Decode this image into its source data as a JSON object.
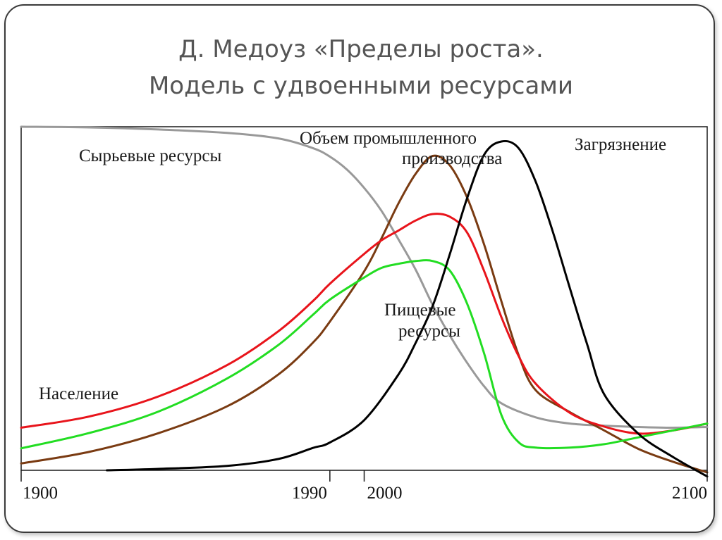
{
  "slide": {
    "title_line1": "Д. Медоуз «Пределы роста».",
    "title_line2": "Модель с удвоенными ресурсами"
  },
  "chart_data": {
    "type": "line",
    "xlabel": "",
    "ylabel": "",
    "xlim": [
      1900,
      2100
    ],
    "ylim": [
      0,
      100
    ],
    "x_ticks": [
      {
        "value": 1900,
        "label": "1900"
      },
      {
        "value": 1990,
        "label": "1990"
      },
      {
        "value": 2000,
        "label": "2000"
      },
      {
        "value": 2100,
        "label": "2100"
      }
    ],
    "series": [
      {
        "name": "Сырьевые ресурсы",
        "label_lines": [
          "Сырьевые ресурсы"
        ],
        "color": "#999999",
        "points": [
          [
            1900,
            100
          ],
          [
            1920,
            99.8
          ],
          [
            1940,
            99.2
          ],
          [
            1960,
            98.2
          ],
          [
            1975,
            96.6
          ],
          [
            1985,
            93.8
          ],
          [
            1990,
            91.3
          ],
          [
            1995,
            87.5
          ],
          [
            2000,
            82.2
          ],
          [
            2005,
            75.6
          ],
          [
            2010,
            67.2
          ],
          [
            2015,
            58.4
          ],
          [
            2020,
            48.1
          ],
          [
            2025,
            39.2
          ],
          [
            2030,
            31.3
          ],
          [
            2035,
            24.4
          ],
          [
            2040,
            19.5
          ],
          [
            2050,
            15.4
          ],
          [
            2060,
            13.6
          ],
          [
            2070,
            13.0
          ],
          [
            2080,
            12.6
          ],
          [
            2090,
            12.4
          ],
          [
            2100,
            12.6
          ]
        ]
      },
      {
        "name": "Объем промышленного производства",
        "label_lines": [
          "Объем промышленного",
          "производства"
        ],
        "color": "#7a3b12",
        "points": [
          [
            1900,
            2.0
          ],
          [
            1920,
            5.4
          ],
          [
            1940,
            10.8
          ],
          [
            1960,
            18.6
          ],
          [
            1975,
            27.9
          ],
          [
            1985,
            37.1
          ],
          [
            1990,
            43.3
          ],
          [
            2000,
            57.9
          ],
          [
            2005,
            67.4
          ],
          [
            2010,
            77.7
          ],
          [
            2015,
            86.3
          ],
          [
            2020,
            91.5
          ],
          [
            2025,
            88.7
          ],
          [
            2030,
            79.4
          ],
          [
            2035,
            65.6
          ],
          [
            2040,
            49.2
          ],
          [
            2045,
            33.6
          ],
          [
            2050,
            23.3
          ],
          [
            2060,
            16.9
          ],
          [
            2070,
            11.6
          ],
          [
            2080,
            6.2
          ],
          [
            2090,
            2.5
          ],
          [
            2100,
            -0.6
          ]
        ]
      },
      {
        "name": "Население",
        "label_lines": [
          "Население"
        ],
        "color": "#e8141b",
        "points": [
          [
            1900,
            12.4
          ],
          [
            1920,
            15.7
          ],
          [
            1940,
            21.5
          ],
          [
            1960,
            30.6
          ],
          [
            1975,
            40.5
          ],
          [
            1985,
            49.2
          ],
          [
            1990,
            54.3
          ],
          [
            2000,
            63.0
          ],
          [
            2005,
            66.9
          ],
          [
            2010,
            69.8
          ],
          [
            2015,
            72.7
          ],
          [
            2020,
            74.6
          ],
          [
            2025,
            73.8
          ],
          [
            2030,
            69.2
          ],
          [
            2035,
            57.9
          ],
          [
            2040,
            44.6
          ],
          [
            2045,
            33.3
          ],
          [
            2050,
            25.2
          ],
          [
            2060,
            16.7
          ],
          [
            2070,
            12.7
          ],
          [
            2080,
            10.7
          ],
          [
            2090,
            11.6
          ],
          [
            2100,
            13.6
          ]
        ]
      },
      {
        "name": "Пищевые ресурсы",
        "label_lines": [
          "Пищевые",
          "ресурсы"
        ],
        "color": "#22dd22",
        "points": [
          [
            1900,
            6.4
          ],
          [
            1920,
            10.9
          ],
          [
            1940,
            17.1
          ],
          [
            1960,
            26.7
          ],
          [
            1975,
            36.5
          ],
          [
            1985,
            45.2
          ],
          [
            1990,
            49.7
          ],
          [
            2000,
            56.1
          ],
          [
            2005,
            58.9
          ],
          [
            2010,
            60.1
          ],
          [
            2015,
            60.9
          ],
          [
            2020,
            60.9
          ],
          [
            2025,
            58.1
          ],
          [
            2030,
            48.5
          ],
          [
            2035,
            33.9
          ],
          [
            2040,
            16.1
          ],
          [
            2045,
            8.2
          ],
          [
            2050,
            6.6
          ],
          [
            2060,
            6.6
          ],
          [
            2070,
            7.6
          ],
          [
            2080,
            9.6
          ],
          [
            2090,
            11.6
          ],
          [
            2100,
            13.6
          ]
        ]
      },
      {
        "name": "Загрязнение",
        "label_lines": [
          "Загрязнение"
        ],
        "color": "#000000",
        "points": [
          [
            1925,
            0
          ],
          [
            1940,
            0.4
          ],
          [
            1960,
            1.3
          ],
          [
            1975,
            3.3
          ],
          [
            1985,
            6.5
          ],
          [
            1990,
            8.1
          ],
          [
            2000,
            14.6
          ],
          [
            2010,
            27.9
          ],
          [
            2015,
            37.1
          ],
          [
            2020,
            47.9
          ],
          [
            2025,
            63.0
          ],
          [
            2030,
            79.2
          ],
          [
            2035,
            91.9
          ],
          [
            2040,
            95.7
          ],
          [
            2045,
            93.8
          ],
          [
            2050,
            84.0
          ],
          [
            2055,
            69.4
          ],
          [
            2060,
            52.9
          ],
          [
            2065,
            36.7
          ],
          [
            2070,
            22.1
          ],
          [
            2080,
            10.6
          ],
          [
            2090,
            3.9
          ],
          [
            2100,
            -1.8
          ]
        ]
      }
    ]
  }
}
